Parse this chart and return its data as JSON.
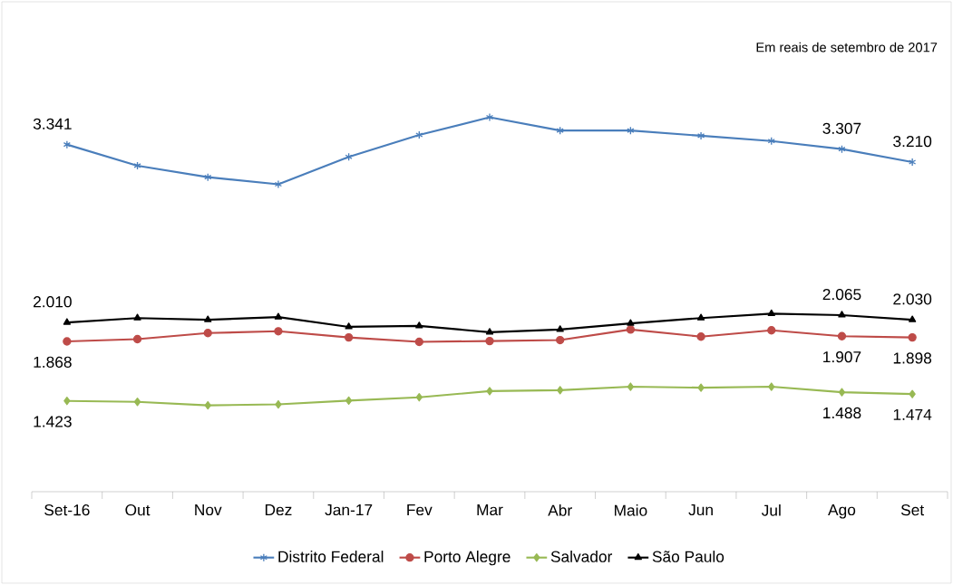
{
  "chart_data": {
    "type": "line",
    "annotations": [
      "Em reais de setembro de 2017"
    ],
    "categories": [
      "Set-16",
      "Out",
      "Nov",
      "Dez",
      "Jan-17",
      "Fev",
      "Mar",
      "Abr",
      "Maio",
      "Jun",
      "Jul",
      "Ago",
      "Set"
    ],
    "grid": false,
    "legend": "bottom",
    "series": [
      {
        "name": "Distrito Federal",
        "color": "#4a7ebb",
        "marker": "cross",
        "values": [
          3341,
          3183,
          3097,
          3044,
          3249,
          3413,
          3545,
          3446,
          3446,
          3407,
          3367,
          3307,
          3210
        ],
        "value_labels": [
          "3.341",
          null,
          null,
          null,
          null,
          null,
          null,
          null,
          null,
          null,
          null,
          "3.307",
          "3.210"
        ]
      },
      {
        "name": "Porto Alegre",
        "color": "#be4b48",
        "marker": "circle",
        "values": [
          1868,
          1885,
          1931,
          1944,
          1898,
          1865,
          1871,
          1878,
          1957,
          1904,
          1951,
          1907,
          1898
        ],
        "value_labels": [
          "1.868",
          null,
          null,
          null,
          null,
          null,
          null,
          null,
          null,
          null,
          null,
          "1.907",
          "1.898"
        ]
      },
      {
        "name": "Salvador",
        "color": "#98b954",
        "marker": "diamond",
        "values": [
          1423,
          1416,
          1390,
          1397,
          1425,
          1450,
          1496,
          1503,
          1529,
          1522,
          1529,
          1488,
          1474
        ],
        "value_labels": [
          "1.423",
          null,
          null,
          null,
          null,
          null,
          null,
          null,
          null,
          null,
          null,
          "1.488",
          "1.474"
        ]
      },
      {
        "name": "São Paulo",
        "color": "#000000",
        "marker": "triangle",
        "values": [
          2010,
          2043,
          2030,
          2050,
          1977,
          1984,
          1937,
          1957,
          2003,
          2043,
          2076,
          2065,
          2030
        ],
        "value_labels": [
          "2.010",
          null,
          null,
          null,
          null,
          null,
          null,
          null,
          null,
          null,
          null,
          "2.065",
          "2.030"
        ]
      }
    ]
  }
}
